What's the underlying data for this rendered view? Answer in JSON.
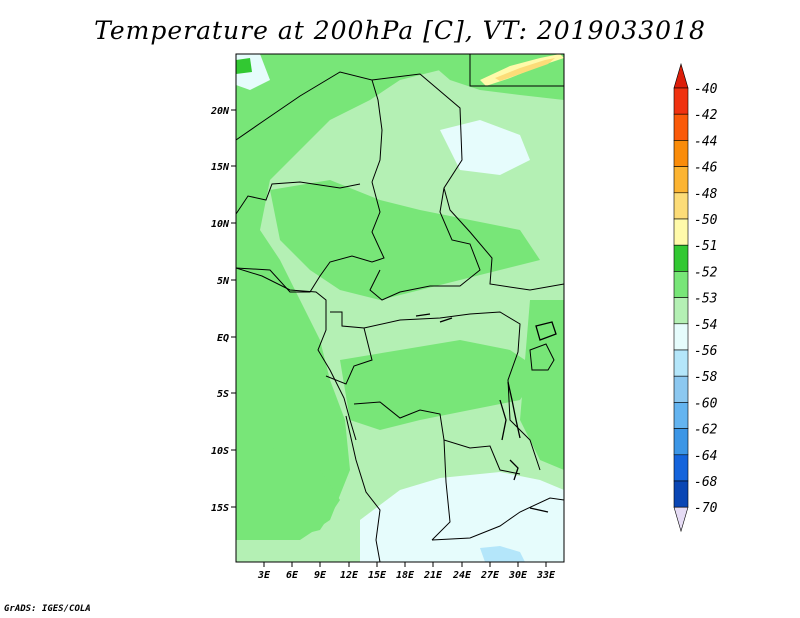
{
  "title": "Temperature at 200hPa [C], VT: 2019033018",
  "credit": "GrADS: IGES/COLA",
  "map": {
    "lat_labels": [
      "20N",
      "15N",
      "10N",
      "5N",
      "EQ",
      "5S",
      "10S",
      "15S"
    ],
    "lon_labels": [
      "3E",
      "6E",
      "9E",
      "12E",
      "15E",
      "18E",
      "21E",
      "24E",
      "27E",
      "30E",
      "33E"
    ]
  },
  "legend": {
    "labels": [
      "-40",
      "-42",
      "-44",
      "-46",
      "-48",
      "-50",
      "-51",
      "-52",
      "-53",
      "-54",
      "-56",
      "-58",
      "-60",
      "-62",
      "-64",
      "-68",
      "-70"
    ],
    "colors": [
      "#f03210",
      "#fa5a0a",
      "#fa8c0a",
      "#fcb432",
      "#fcdc78",
      "#fffaaa",
      "#32c832",
      "#78e678",
      "#b4f0b4",
      "#e6fcfc",
      "#b4e6fa",
      "#8cc8f0",
      "#64b4f0",
      "#3c96e6",
      "#1464dc",
      "#0a46b4",
      "#0a1464"
    ],
    "top_arrow_color": "#dc1e0a",
    "bottom_arrow_color": "#e6dcf5"
  },
  "fill_colors": {
    "c52": "#78e678",
    "c53": "#b4f0b4",
    "c54": "#e6fcfc",
    "c56": "#b4e6fa",
    "c50": "#fffaaa",
    "c48": "#fcdc78",
    "c51": "#32c832"
  }
}
